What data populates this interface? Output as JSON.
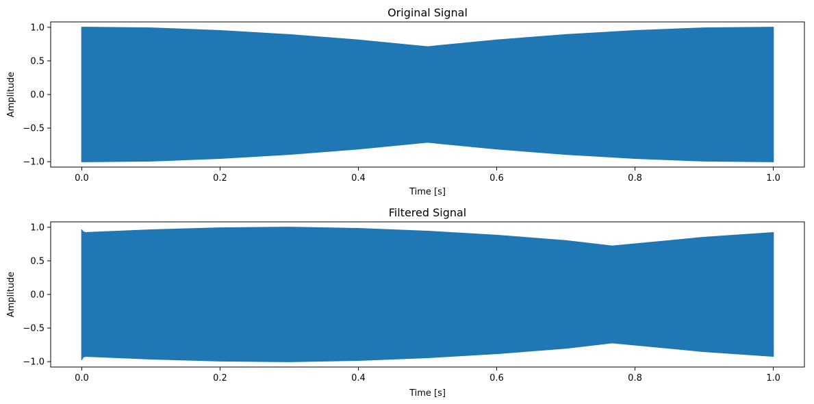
{
  "chart_data": [
    {
      "type": "line",
      "title": "Original Signal",
      "xlabel": "Time [s]",
      "ylabel": "Amplitude",
      "xlim": [
        -0.045,
        1.045
      ],
      "ylim": [
        -1.08,
        1.08
      ],
      "xticks": [
        0.0,
        0.2,
        0.4,
        0.6,
        0.8,
        1.0
      ],
      "xtick_labels": [
        "0.0",
        "0.2",
        "0.4",
        "0.6",
        "0.8",
        "1.0"
      ],
      "yticks": [
        1.0,
        0.5,
        0.0,
        -0.5,
        -1.0
      ],
      "ytick_labels": [
        "1.0",
        "0.5",
        "0.0",
        "−0.5",
        "−1.0"
      ],
      "grid": false,
      "color": "#1f77b4",
      "envelope": {
        "x": [
          0.0,
          0.1,
          0.2,
          0.3,
          0.4,
          0.5,
          0.6,
          0.7,
          0.8,
          0.9,
          1.0
        ],
        "upper": [
          1.0,
          0.99,
          0.95,
          0.89,
          0.81,
          0.71,
          0.81,
          0.89,
          0.95,
          0.99,
          1.0
        ],
        "lower": [
          -1.0,
          -0.99,
          -0.95,
          -0.89,
          -0.81,
          -0.71,
          -0.81,
          -0.89,
          -0.95,
          -0.99,
          -1.0
        ]
      }
    },
    {
      "type": "line",
      "title": "Filtered Signal",
      "xlabel": "Time [s]",
      "ylabel": "Amplitude",
      "xlim": [
        -0.045,
        1.045
      ],
      "ylim": [
        -1.08,
        1.08
      ],
      "xticks": [
        0.0,
        0.2,
        0.4,
        0.6,
        0.8,
        1.0
      ],
      "xtick_labels": [
        "0.0",
        "0.2",
        "0.4",
        "0.6",
        "0.8",
        "1.0"
      ],
      "yticks": [
        1.0,
        0.5,
        0.0,
        -0.5,
        -1.0
      ],
      "ytick_labels": [
        "1.0",
        "0.5",
        "0.0",
        "−0.5",
        "−1.0"
      ],
      "grid": false,
      "color": "#1f77b4",
      "envelope": {
        "x": [
          0.0,
          0.002,
          0.006,
          0.1,
          0.2,
          0.3,
          0.4,
          0.5,
          0.6,
          0.7,
          0.767,
          0.85,
          0.9,
          1.0
        ],
        "upper": [
          0.96,
          0.93,
          0.92,
          0.96,
          0.99,
          1.0,
          0.98,
          0.94,
          0.88,
          0.8,
          0.72,
          0.8,
          0.85,
          0.92
        ],
        "lower": [
          -0.97,
          -0.93,
          -0.92,
          -0.96,
          -0.99,
          -1.0,
          -0.98,
          -0.94,
          -0.88,
          -0.8,
          -0.72,
          -0.8,
          -0.85,
          -0.92
        ]
      }
    }
  ]
}
